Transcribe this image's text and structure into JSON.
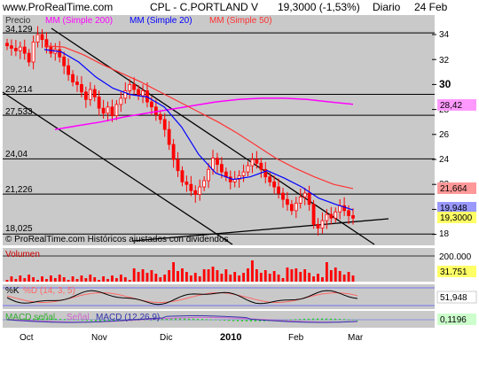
{
  "header": {
    "site": "www.ProRealTime.com",
    "ticker": "CPL - C.PORTLAND V",
    "price_change": "19,3000 (-1,53%)",
    "period": "Diario",
    "date": "24 Feb"
  },
  "colors": {
    "panel_bg": "#c9c9c9",
    "candle": "#ff0000",
    "sma200": "#ff00ff",
    "sma20": "#0000ff",
    "sma50": "#ff3333",
    "volume": "#ff0000",
    "k_line": "#000000",
    "d_line": "#ff6666",
    "macd": "#3333aa",
    "signal": "#cc66cc",
    "macd_hist": "#33cc33",
    "tag_yellow": "#ffff66",
    "tag_pink": "#ff9999",
    "tag_blue": "#9999ff"
  },
  "price_panel": {
    "y_label": "Precio",
    "legend": [
      {
        "text": "MM (Simple 200)",
        "color": "#ff00ff"
      },
      {
        "text": "MM (Simple 20)",
        "color": "#0000ff"
      },
      {
        "text": "MM (Simple 50)",
        "color": "#ff3333"
      }
    ],
    "watermark": "© ProRealTime.com Históricos ajustados con dividendos",
    "level_labels": [
      "34,129",
      "29,214",
      "27,533",
      "24,04",
      "21,226",
      "18,025"
    ],
    "right_ticks": [
      "34",
      "32",
      "30",
      "28",
      "26",
      "24",
      "22",
      "20",
      "18"
    ],
    "right_tags": [
      {
        "text": "28,42",
        "bg": "#ff99ff"
      },
      {
        "text": "21,664",
        "bg": "#ff9999"
      },
      {
        "text": "19,948",
        "bg": "#9999ff"
      },
      {
        "text": "19,3000",
        "bg": "#ffff66"
      }
    ]
  },
  "volume_panel": {
    "title": "Volumen",
    "tick": "200.000",
    "tag": "31.751"
  },
  "stoch_panel": {
    "title_parts": [
      "%K",
      "%D (14, 3, 5)"
    ],
    "tag": "51,948"
  },
  "macd_panel": {
    "title_parts": [
      "MACD señal",
      "Señal",
      "MACD (12,26,9)"
    ],
    "tag": "0,1196"
  },
  "x_axis": {
    "months": [
      "Oct",
      "Nov",
      "Dic",
      "2010",
      "Feb",
      "Mar"
    ]
  },
  "chart_data": {
    "type": "candlestick",
    "title": "CPL - C.PORTLAND V",
    "ylabel": "Precio",
    "ylim": [
      17.2,
      35.5
    ],
    "close_series_approx": [
      33.1,
      32.9,
      32.7,
      33.0,
      32.5,
      31.8,
      33.4,
      34.0,
      33.6,
      33.0,
      32.5,
      32.8,
      32.2,
      31.5,
      30.8,
      30.2,
      30.0,
      29.4,
      28.8,
      29.6,
      29.0,
      28.1,
      27.7,
      28.2,
      27.5,
      28.4,
      28.9,
      29.5,
      30.0,
      29.6,
      29.1,
      29.5,
      28.6,
      28.2,
      27.6,
      27.2,
      26.4,
      25.2,
      24.0,
      23.1,
      22.2,
      22.0,
      21.5,
      21.2,
      21.8,
      22.3,
      23.2,
      24.1,
      23.6,
      23.0,
      22.6,
      22.2,
      22.4,
      22.7,
      23.0,
      23.5,
      24.0,
      23.7,
      23.2,
      22.6,
      22.2,
      21.8,
      21.3,
      20.8,
      20.4,
      19.9,
      20.5,
      21.0,
      21.3,
      20.4,
      18.8,
      18.5,
      19.1,
      19.6,
      19.3,
      19.8,
      20.3,
      19.9,
      19.5,
      19.3
    ],
    "sma200_approx": [
      26.4,
      26.7,
      27.0,
      27.4,
      27.7,
      28.0,
      28.3,
      28.6,
      28.8,
      28.9,
      28.9,
      28.8,
      28.6,
      28.42
    ],
    "sma50_approx": [
      33.1,
      33.0,
      32.4,
      31.6,
      30.9,
      30.2,
      29.4,
      28.6,
      27.8,
      27.0,
      26.1,
      25.1,
      24.1,
      23.3,
      22.6,
      22.0,
      21.664
    ],
    "sma20_approx": [
      32.8,
      32.6,
      31.8,
      30.6,
      29.7,
      29.2,
      29.0,
      28.2,
      26.6,
      24.4,
      22.9,
      22.4,
      22.6,
      23.1,
      22.5,
      21.8,
      20.9,
      20.4,
      19.948
    ],
    "last_close": 19.3,
    "change_pct": -1.53,
    "sma200_last": 28.42,
    "sma50_last": 21.664,
    "sma20_last": 19.948,
    "horizontal_levels": [
      34.129,
      29.214,
      27.533,
      24.04,
      21.226,
      18.025
    ],
    "volume_last": 31751,
    "volume_tick": 200000,
    "stochastic_last": 51.948,
    "macd_last": 0.1196
  }
}
